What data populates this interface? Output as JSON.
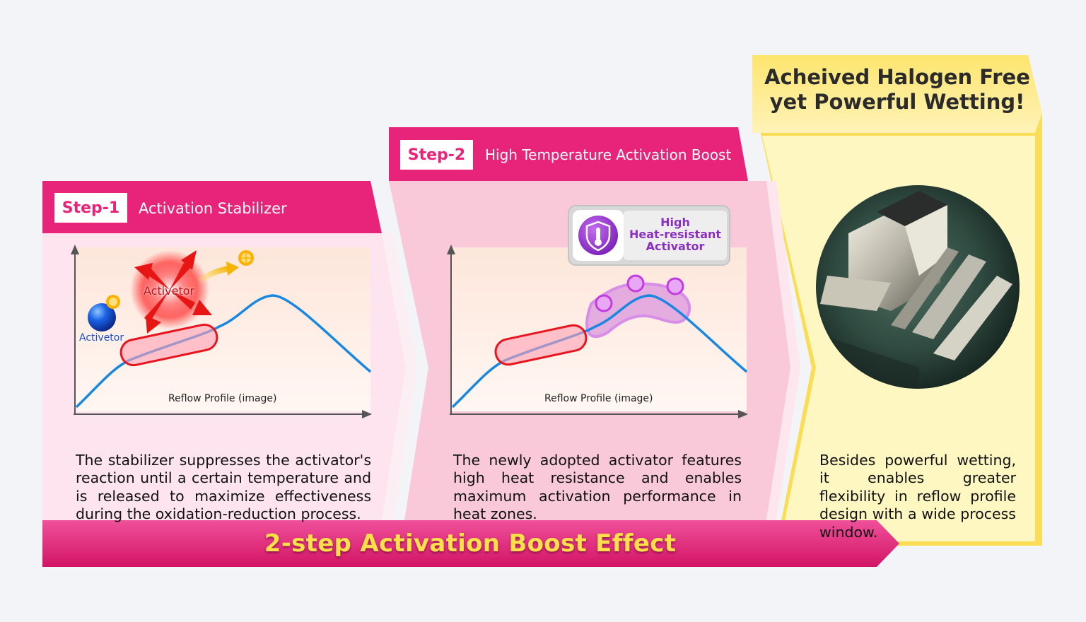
{
  "step1": {
    "step_label": "Step-1",
    "title": "Activation Stabilizer",
    "chart_caption": "Reflow Profile (image)",
    "activator_label_top": "Activetor",
    "activator_label_bottom": "Activetor",
    "description": "The stabilizer suppresses the activator's reaction until a certain temperature and is released to maximize effectiveness during the oxidation-reduction process."
  },
  "step2": {
    "step_label": "Step-2",
    "title": "High Temperature Activation Boost",
    "chart_caption": "Reflow Profile (image)",
    "badge": {
      "line1": "High",
      "line2": "Heat-resistant",
      "line3": "Activator"
    },
    "description": "The newly adopted activator features high heat resistance and enables maximum activation performance in heat zones."
  },
  "result": {
    "title_line1": "Acheived Halogen Free",
    "title_line2": "yet Powerful Wetting!",
    "description": "Besides powerful wetting, it enables greater flexibility in reflow profile design with a wide process window."
  },
  "footer": {
    "title": "2-step Activation Boost Effect"
  },
  "colors": {
    "magenta": "#e8237a",
    "pink_light": "#fbd3e3",
    "yellow": "#fde882",
    "curve_blue": "#1a88e0",
    "badge_purple": "#a23bd4"
  },
  "icons": {
    "activator_blue": "blue-sphere-icon",
    "activator_orange": "orange-slice-icon",
    "heat_shield": "thermometer-shield-icon"
  }
}
